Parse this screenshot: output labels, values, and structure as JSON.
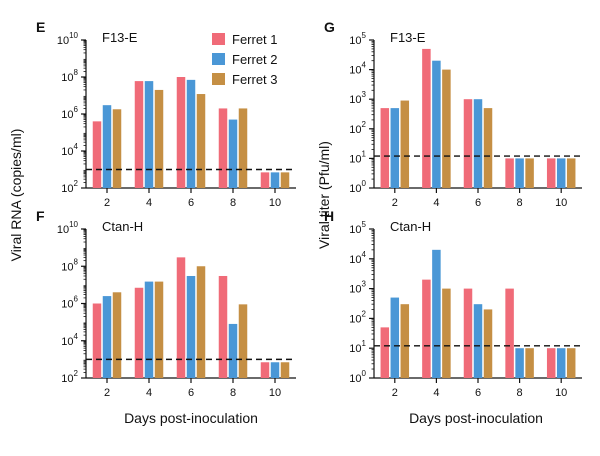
{
  "figure": {
    "colors": {
      "ferret1": "#f06b78",
      "ferret2": "#4a97d6",
      "ferret3": "#c58f44",
      "axis": "#111111"
    },
    "legend": [
      {
        "label": "Ferret 1",
        "color": "#f06b78"
      },
      {
        "label": "Ferret 2",
        "color": "#4a97d6"
      },
      {
        "label": "Ferret 3",
        "color": "#c58f44"
      }
    ],
    "left_ylabel": "Viral RNA (copies/ml)",
    "right_ylabel": "Viral titer (Pfu/ml)",
    "left_xlabel": "Days post-inoculation",
    "right_xlabel": "Days post-inoculation"
  },
  "chart_data": [
    {
      "panel": "E",
      "title": "F13-E",
      "type": "bar",
      "yscale": "log",
      "ylim": [
        100,
        10000000000
      ],
      "yticks": [
        {
          "exp": 2
        },
        {
          "exp": 4
        },
        {
          "exp": 6
        },
        {
          "exp": 8
        },
        {
          "exp": 10
        }
      ],
      "categories": [
        "2",
        "4",
        "6",
        "8",
        "10"
      ],
      "detection_limit": 1000,
      "series": [
        {
          "name": "Ferret 1",
          "values": [
            400000,
            60000000,
            100000000,
            2000000,
            700
          ]
        },
        {
          "name": "Ferret 2",
          "values": [
            3000000,
            60000000,
            70000000,
            500000,
            700
          ]
        },
        {
          "name": "Ferret 3",
          "values": [
            1800000,
            20000000,
            12000000,
            2000000,
            700
          ]
        }
      ]
    },
    {
      "panel": "F",
      "title": "Ctan-H",
      "type": "bar",
      "yscale": "log",
      "ylim": [
        100,
        10000000000
      ],
      "yticks": [
        {
          "exp": 2
        },
        {
          "exp": 4
        },
        {
          "exp": 6
        },
        {
          "exp": 8
        },
        {
          "exp": 10
        }
      ],
      "categories": [
        "2",
        "4",
        "6",
        "8",
        "10"
      ],
      "detection_limit": 1000,
      "series": [
        {
          "name": "Ferret 1",
          "values": [
            1000000,
            7000000,
            300000000,
            30000000,
            700
          ]
        },
        {
          "name": "Ferret 2",
          "values": [
            2500000,
            15000000,
            30000000,
            80000,
            700
          ]
        },
        {
          "name": "Ferret 3",
          "values": [
            4000000,
            15000000,
            100000000,
            900000,
            700
          ]
        }
      ]
    },
    {
      "panel": "G",
      "title": "F13-E",
      "type": "bar",
      "yscale": "log",
      "ylim": [
        1,
        100000
      ],
      "yticks": [
        {
          "exp": 0
        },
        {
          "exp": 1
        },
        {
          "exp": 2
        },
        {
          "exp": 3
        },
        {
          "exp": 4
        },
        {
          "exp": 5
        }
      ],
      "categories": [
        "2",
        "4",
        "6",
        "8",
        "10"
      ],
      "detection_limit": 12,
      "series": [
        {
          "name": "Ferret 1",
          "values": [
            500,
            50000,
            1000,
            10,
            10
          ]
        },
        {
          "name": "Ferret 2",
          "values": [
            500,
            20000,
            1000,
            10,
            10
          ]
        },
        {
          "name": "Ferret 3",
          "values": [
            900,
            10000,
            500,
            10,
            10
          ]
        }
      ]
    },
    {
      "panel": "H",
      "title": "Ctan-H",
      "type": "bar",
      "yscale": "log",
      "ylim": [
        1,
        100000
      ],
      "yticks": [
        {
          "exp": 0
        },
        {
          "exp": 1
        },
        {
          "exp": 2
        },
        {
          "exp": 3
        },
        {
          "exp": 4
        },
        {
          "exp": 5
        }
      ],
      "categories": [
        "2",
        "4",
        "6",
        "8",
        "10"
      ],
      "detection_limit": 12,
      "series": [
        {
          "name": "Ferret 1",
          "values": [
            50,
            2000,
            1000,
            1000,
            10
          ]
        },
        {
          "name": "Ferret 2",
          "values": [
            500,
            20000,
            300,
            10,
            10
          ]
        },
        {
          "name": "Ferret 3",
          "values": [
            300,
            1000,
            200,
            10,
            10
          ]
        }
      ]
    }
  ]
}
